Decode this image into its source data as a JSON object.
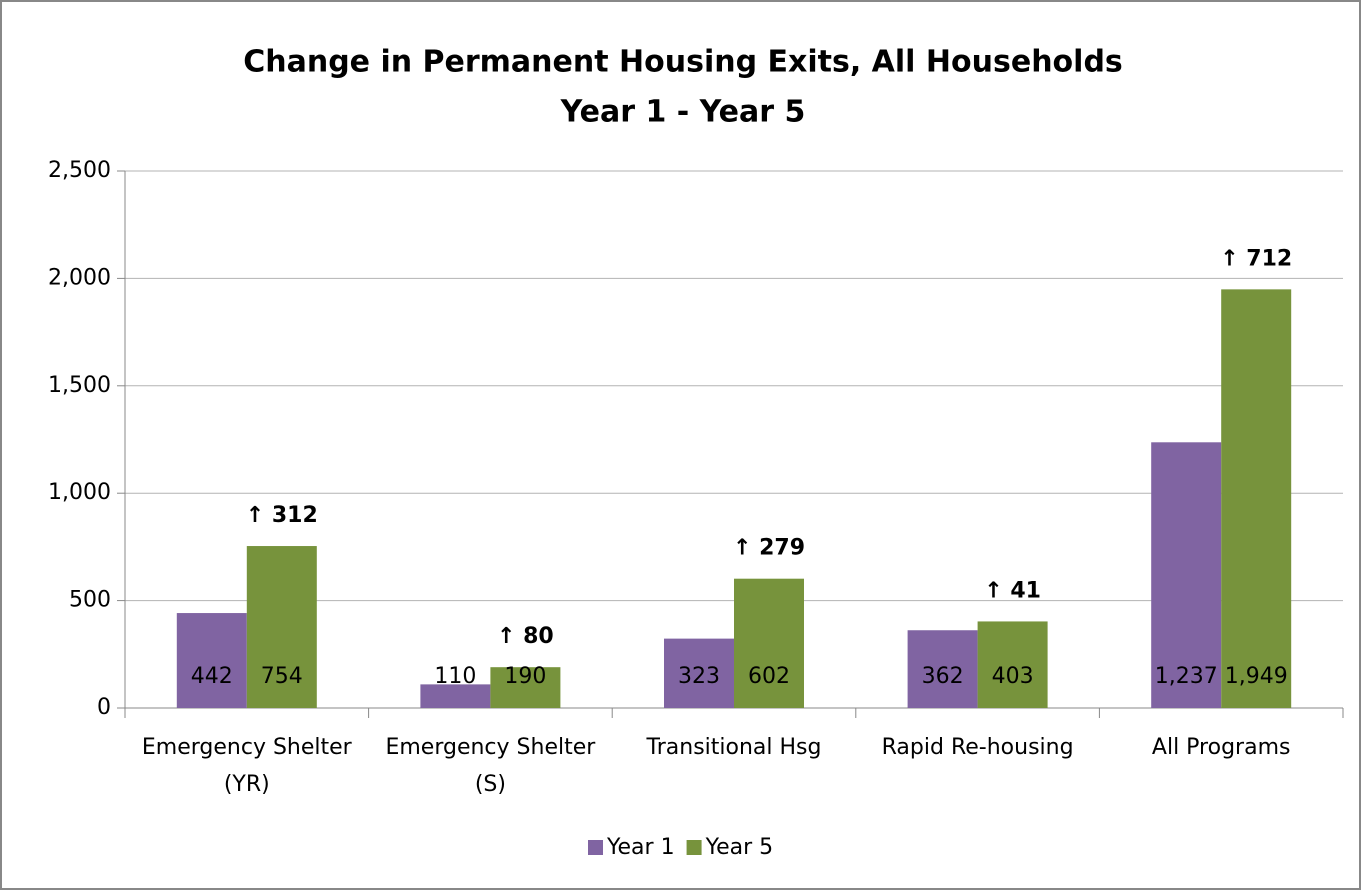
{
  "chart_data": {
    "type": "bar",
    "title": "Change in Permanent Housing Exits, All Households",
    "subtitle": "Year 1 - Year 5",
    "categories": [
      "Emergency Shelter (YR)",
      "Emergency Shelter (S)",
      "Transitional Hsg",
      "Rapid Re-housing",
      "All Programs"
    ],
    "series": [
      {
        "name": "Year 1",
        "color": "#8064a2",
        "values": [
          442,
          110,
          323,
          362,
          1237
        ],
        "value_labels": [
          "442",
          "110",
          "323",
          "362",
          "1,237"
        ]
      },
      {
        "name": "Year 5",
        "color": "#77933c",
        "values": [
          754,
          190,
          602,
          403,
          1949
        ],
        "value_labels": [
          "754",
          "190",
          "602",
          "403",
          "1,949"
        ]
      }
    ],
    "annotations": [
      "↑ 312",
      "↑ 80",
      "↑ 279",
      "↑ 41",
      "↑ 712"
    ],
    "ylim": [
      0,
      2500
    ],
    "yticks": [
      0,
      500,
      {
        "value": 1000,
        "label": "1,000"
      },
      {
        "value": 1500,
        "label": "1,500"
      },
      {
        "value": 2000,
        "label": "2,000"
      },
      {
        "value": 2500,
        "label": "2,500"
      }
    ],
    "grid": true,
    "legend": "bottom"
  }
}
